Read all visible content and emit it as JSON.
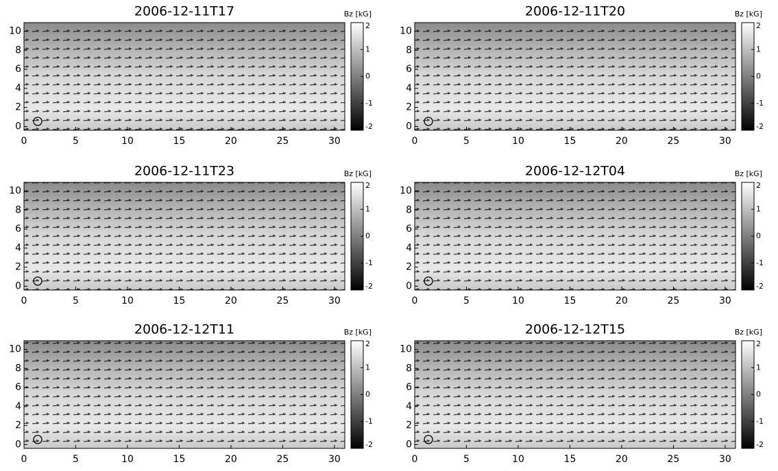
{
  "chart_data": [
    {
      "type": "vector-field",
      "title": "2006-12-11T17",
      "xlim": [
        0,
        31
      ],
      "xticks": [
        0,
        5,
        10,
        15,
        20,
        25,
        30
      ],
      "ylim": [
        -0.4,
        10.9
      ],
      "yticks": [
        0,
        2,
        4,
        6,
        8,
        10
      ],
      "colorbar": {
        "label": "Bz [kG]",
        "lim": [
          -2,
          2
        ],
        "ticks": [
          -2,
          -1,
          0,
          1,
          2
        ]
      }
    },
    {
      "type": "vector-field",
      "title": "2006-12-11T20",
      "xlim": [
        0,
        31
      ],
      "xticks": [
        0,
        5,
        10,
        15,
        20,
        25,
        30
      ],
      "ylim": [
        -0.4,
        10.9
      ],
      "yticks": [
        0,
        2,
        4,
        6,
        8,
        10
      ],
      "colorbar": {
        "label": "Bz [kG]",
        "lim": [
          -2,
          2
        ],
        "ticks": [
          -2,
          -1,
          0,
          1,
          2
        ]
      }
    },
    {
      "type": "vector-field",
      "title": "2006-12-11T23",
      "xlim": [
        0,
        31
      ],
      "xticks": [
        0,
        5,
        10,
        15,
        20,
        25,
        30
      ],
      "ylim": [
        -0.4,
        10.9
      ],
      "yticks": [
        0,
        2,
        4,
        6,
        8,
        10
      ],
      "colorbar": {
        "label": "Bz [kG]",
        "lim": [
          -2,
          2
        ],
        "ticks": [
          -2,
          -1,
          0,
          1,
          2
        ]
      }
    },
    {
      "type": "vector-field",
      "title": "2006-12-12T04",
      "xlim": [
        0,
        31
      ],
      "xticks": [
        0,
        5,
        10,
        15,
        20,
        25,
        30
      ],
      "ylim": [
        -0.4,
        10.9
      ],
      "yticks": [
        0,
        2,
        4,
        6,
        8,
        10
      ],
      "colorbar": {
        "label": "Bz [kG]",
        "lim": [
          -2,
          2
        ],
        "ticks": [
          -2,
          -1,
          0,
          1,
          2
        ]
      }
    },
    {
      "type": "vector-field",
      "title": "2006-12-12T11",
      "xlim": [
        0,
        31
      ],
      "xticks": [
        0,
        5,
        10,
        15,
        20,
        25,
        30
      ],
      "ylim": [
        -0.4,
        10.9
      ],
      "yticks": [
        0,
        2,
        4,
        6,
        8,
        10
      ],
      "colorbar": {
        "label": "Bz [kG]",
        "lim": [
          -2,
          2
        ],
        "ticks": [
          -2,
          -1,
          0,
          1,
          2
        ]
      }
    },
    {
      "type": "vector-field",
      "title": "2006-12-12T15",
      "xlim": [
        0,
        31
      ],
      "xticks": [
        0,
        5,
        10,
        15,
        20,
        25,
        30
      ],
      "ylim": [
        -0.4,
        10.9
      ],
      "yticks": [
        0,
        2,
        4,
        6,
        8,
        10
      ],
      "colorbar": {
        "label": "Bz [kG]",
        "lim": [
          -2,
          2
        ],
        "ticks": [
          -2,
          -1,
          0,
          1,
          2
        ]
      }
    }
  ]
}
